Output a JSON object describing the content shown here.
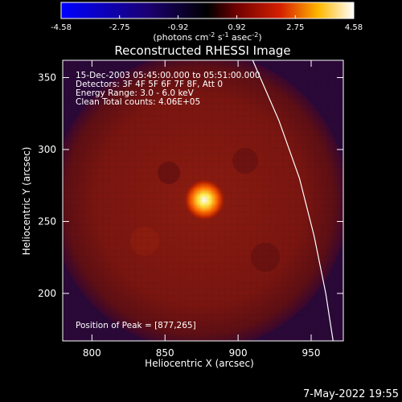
{
  "chart_data": {
    "type": "heatmap",
    "title": "Reconstructed RHESSI Image",
    "xlabel": "Heliocentric X (arcsec)",
    "ylabel": "Heliocentric Y (arcsec)",
    "xlim": [
      780,
      972
    ],
    "ylim": [
      167,
      362
    ],
    "x_ticks": [
      800,
      850,
      900,
      950
    ],
    "y_ticks": [
      200,
      250,
      300,
      350
    ],
    "colorbar": {
      "unit_label": "(photons cm⁻² s⁻¹ asec⁻²)",
      "range": [
        -4.58,
        4.58
      ],
      "tick_labels": [
        "-4.58",
        "-2.75",
        "-0.92",
        "0.92",
        "2.75",
        "4.58"
      ],
      "colors": [
        "#0000ff",
        "#000000",
        "#800000",
        "#ff4000",
        "#ffd200",
        "#ffffff"
      ]
    },
    "annotations": [
      "15-Dec-2003 05:45:00.000 to 05:51:00.000",
      "Detectors: 3F 4F 5F 6F 7F 8F, Att 0",
      "Energy Range: 3.0 - 6.0 keV",
      "Clean     Total counts: 4.06E+05"
    ],
    "peak_label": "Position of Peak = [877,265]",
    "peak": {
      "x": 877,
      "y": 265
    },
    "limb": [
      [
        910,
        362
      ],
      [
        928,
        320
      ],
      [
        942,
        280
      ],
      [
        952,
        240
      ],
      [
        960,
        200
      ],
      [
        965,
        167
      ]
    ],
    "grid": false,
    "timestamp": "7-May-2022 19:55"
  }
}
